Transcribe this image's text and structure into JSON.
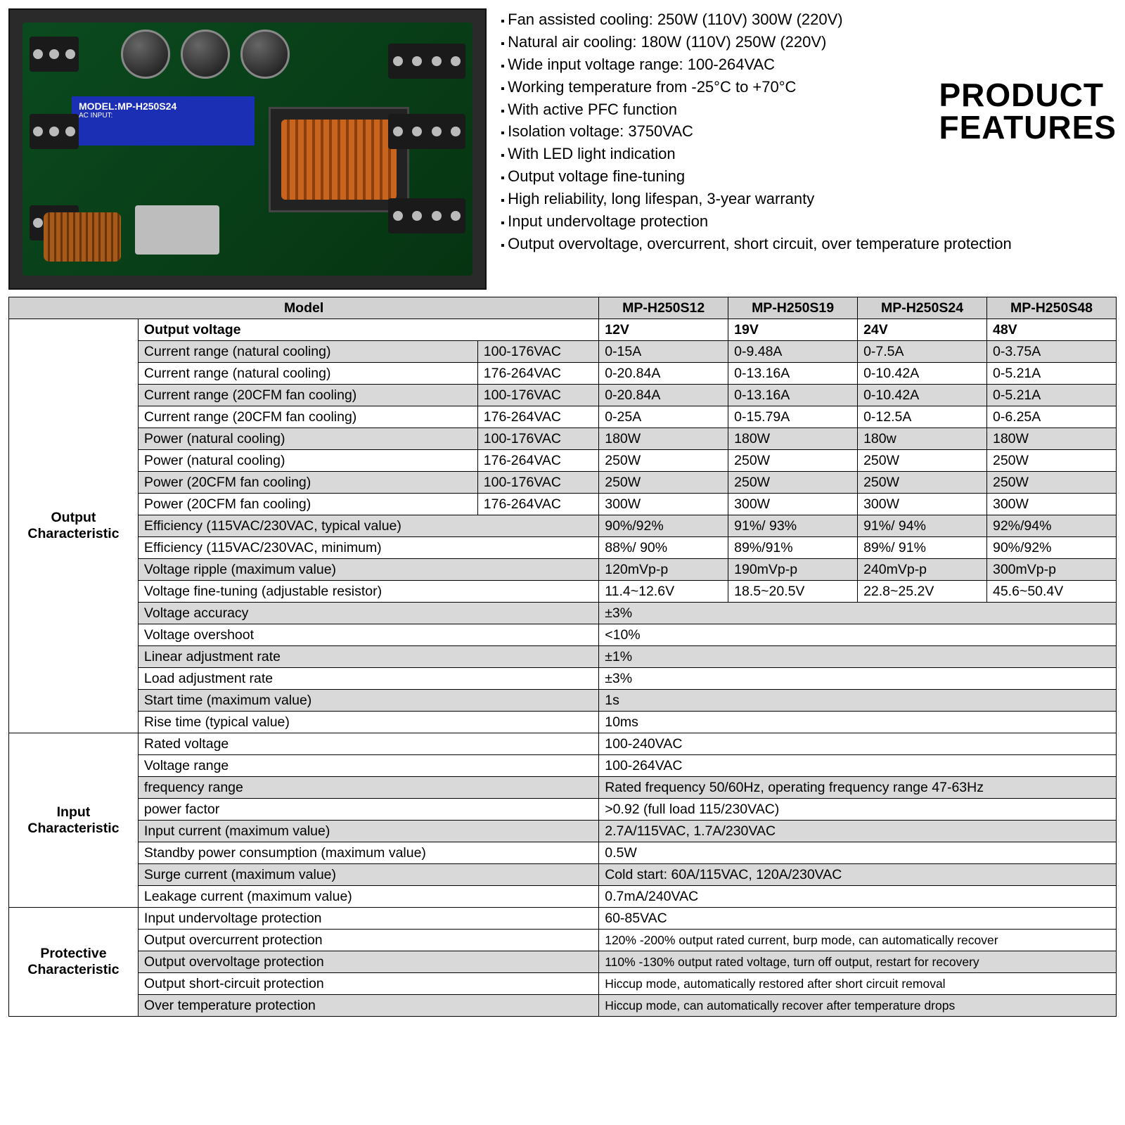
{
  "title": "PRODUCT FEATURES",
  "features": [
    "Fan assisted cooling: 250W (110V) 300W (220V)",
    "Natural air cooling: 180W (110V) 250W (220V)",
    "Wide input voltage range: 100-264VAC",
    "Working temperature from -25°C to +70°C",
    "With active PFC function",
    "Isolation voltage: 3750VAC",
    "With LED light indication",
    "Output voltage fine-tuning",
    "High reliability, long lifespan, 3-year warranty",
    "Input undervoltage protection",
    "Output overvoltage, overcurrent, short circuit, over temperature protection"
  ],
  "labelLine1": "MODEL:MP-H250S24",
  "labelLine2": "AC INPUT:",
  "header": {
    "model": "Model",
    "m1": "MP-H250S12",
    "m2": "MP-H250S19",
    "m3": "MP-H250S24",
    "m4": "MP-H250S48"
  },
  "sections": {
    "output": "Output Characteristic",
    "input": "Input Characteristic",
    "protective": "Protective Characteristic"
  },
  "rows": {
    "outV": {
      "p": "Output voltage",
      "v": [
        "12V",
        "19V",
        "24V",
        "48V"
      ]
    },
    "cr1": {
      "p": "Current range (natural cooling)",
      "sub": "100-176VAC",
      "v": [
        "0-15A",
        "0-9.48A",
        "0-7.5A",
        "0-3.75A"
      ]
    },
    "cr2": {
      "p": "Current range (natural cooling)",
      "sub": "176-264VAC",
      "v": [
        "0-20.84A",
        "0-13.16A",
        "0-10.42A",
        "0-5.21A"
      ]
    },
    "cr3": {
      "p": "Current range (20CFM fan cooling)",
      "sub": "100-176VAC",
      "v": [
        "0-20.84A",
        "0-13.16A",
        "0-10.42A",
        "0-5.21A"
      ]
    },
    "cr4": {
      "p": "Current range (20CFM fan cooling)",
      "sub": "176-264VAC",
      "v": [
        "0-25A",
        "0-15.79A",
        "0-12.5A",
        "0-6.25A"
      ]
    },
    "pw1": {
      "p": "Power (natural cooling)",
      "sub": "100-176VAC",
      "v": [
        "180W",
        "180W",
        "180w",
        "180W"
      ]
    },
    "pw2": {
      "p": "Power (natural cooling)",
      "sub": "176-264VAC",
      "v": [
        "250W",
        "250W",
        "250W",
        "250W"
      ]
    },
    "pw3": {
      "p": "Power (20CFM fan cooling)",
      "sub": "100-176VAC",
      "v": [
        "250W",
        "250W",
        "250W",
        "250W"
      ]
    },
    "pw4": {
      "p": "Power (20CFM fan cooling)",
      "sub": "176-264VAC",
      "v": [
        "300W",
        "300W",
        "300W",
        "300W"
      ]
    },
    "eff1": {
      "p": "Efficiency (115VAC/230VAC, typical value)",
      "v": [
        "90%/92%",
        "91%/ 93%",
        "91%/ 94%",
        "92%/94%"
      ]
    },
    "eff2": {
      "p": "Efficiency (115VAC/230VAC, minimum)",
      "v": [
        "88%/ 90%",
        "89%/91%",
        "89%/ 91%",
        "90%/92%"
      ]
    },
    "rip": {
      "p": "Voltage ripple (maximum value)",
      "v": [
        "120mVp-p",
        "190mVp-p",
        "240mVp-p",
        "300mVp-p"
      ]
    },
    "fine": {
      "p": "Voltage fine-tuning (adjustable resistor)",
      "v": [
        "11.4~12.6V",
        "18.5~20.5V",
        "22.8~25.2V",
        "45.6~50.4V"
      ]
    },
    "acc": {
      "p": "Voltage accuracy",
      "v": "±3%"
    },
    "ovs": {
      "p": "Voltage overshoot",
      "v": "<10%"
    },
    "lin": {
      "p": "Linear adjustment rate",
      "v": "±1%"
    },
    "load": {
      "p": "Load adjustment rate",
      "v": "±3%"
    },
    "start": {
      "p": "Start time (maximum value)",
      "v": "1s"
    },
    "rise": {
      "p": "Rise time (typical value)",
      "v": "10ms"
    },
    "rv": {
      "p": "Rated voltage",
      "v": "100-240VAC"
    },
    "vr": {
      "p": "Voltage range",
      "v": "100-264VAC"
    },
    "fr": {
      "p": "frequency range",
      "v": "Rated frequency 50/60Hz, operating frequency range 47-63Hz"
    },
    "pf": {
      "p": "power factor",
      "v": ">0.92 (full load 115/230VAC)"
    },
    "ic": {
      "p": "Input current (maximum value)",
      "v": "2.7A/115VAC, 1.7A/230VAC"
    },
    "sp": {
      "p": "Standby power consumption (maximum value)",
      "v": "0.5W"
    },
    "sc": {
      "p": "Surge current (maximum value)",
      "v": "Cold start: 60A/115VAC, 120A/230VAC"
    },
    "lk": {
      "p": "Leakage current (maximum value)",
      "v": "0.7mA/240VAC"
    },
    "uvp": {
      "p": "Input undervoltage protection",
      "v": "60-85VAC"
    },
    "ocp": {
      "p": "Output overcurrent protection",
      "v": "120% -200% output rated current, burp mode, can automatically recover"
    },
    "ovp": {
      "p": "Output overvoltage protection",
      "v": "110% -130% output rated voltage, turn off output, restart for recovery"
    },
    "scp": {
      "p": "Output short-circuit protection",
      "v": "Hiccup mode, automatically restored after short circuit removal"
    },
    "otp": {
      "p": "Over temperature protection",
      "v": "Hiccup mode, can automatically recover after temperature drops"
    }
  },
  "colors": {
    "shade": "#d9d9d9",
    "border": "#000000",
    "bg": "#ffffff",
    "text": "#000000"
  }
}
